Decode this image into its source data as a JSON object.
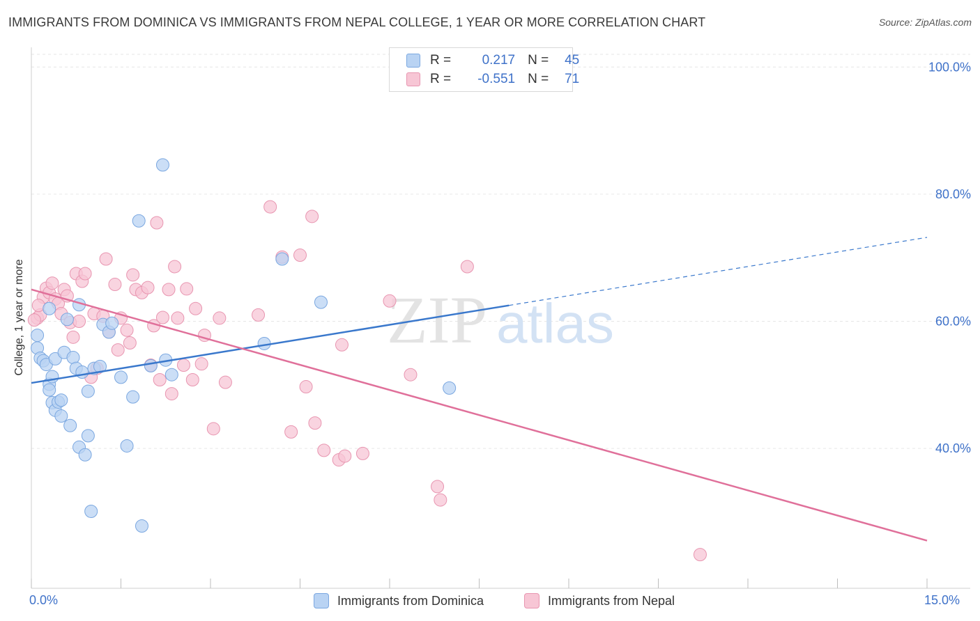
{
  "title": "IMMIGRANTS FROM DOMINICA VS IMMIGRANTS FROM NEPAL COLLEGE, 1 YEAR OR MORE CORRELATION CHART",
  "source": "Source: ZipAtlas.com",
  "watermark": {
    "zip": "ZIP",
    "atlas": "atlas"
  },
  "colors": {
    "blue_fill": "#b9d3f3",
    "blue_stroke": "#7aa7e0",
    "blue_line": "#3a78cc",
    "pink_fill": "#f7c6d5",
    "pink_stroke": "#e895b0",
    "pink_line": "#e0709a",
    "axis_text": "#3f72c9",
    "grid": "#e6e6e6"
  },
  "legend": {
    "rows": [
      {
        "r_label": "R =",
        "r_value": "0.217",
        "n_label": "N =",
        "n_value": "45"
      },
      {
        "r_label": "R =",
        "r_value": "-0.551",
        "n_label": "N =",
        "n_value": "71"
      }
    ]
  },
  "bottom_legend": {
    "dominica": "Immigrants from Dominica",
    "nepal": "Immigrants from Nepal"
  },
  "chart_data": {
    "type": "scatter",
    "xlabel": "",
    "ylabel": "College, 1 year or more",
    "x_tick_labels": {
      "min": "0.0%",
      "max": "15.0%"
    },
    "y_tick_labels": [
      "100.0%",
      "80.0%",
      "60.0%",
      "40.0%"
    ],
    "y_tick_values": [
      100,
      80,
      60,
      40
    ],
    "xlim": [
      0,
      15
    ],
    "ylim": [
      18,
      102
    ],
    "grid": true,
    "series": [
      {
        "name": "Immigrants from Dominica",
        "R": 0.217,
        "N": 45,
        "trend": {
          "x0": 0,
          "y0": 50.3,
          "x1": 8,
          "y1": 62.5,
          "dash_to_x": 15,
          "dash_to_y": 73.2
        },
        "points": [
          [
            0.1,
            57.8
          ],
          [
            0.1,
            55.8
          ],
          [
            0.15,
            54.2
          ],
          [
            0.2,
            53.8
          ],
          [
            0.25,
            53.2
          ],
          [
            0.3,
            50.1
          ],
          [
            0.3,
            49.2
          ],
          [
            0.35,
            51.3
          ],
          [
            0.35,
            47.2
          ],
          [
            0.4,
            46.0
          ],
          [
            0.4,
            54.1
          ],
          [
            0.45,
            47.3
          ],
          [
            0.5,
            47.6
          ],
          [
            0.5,
            45.1
          ],
          [
            0.55,
            55.1
          ],
          [
            0.6,
            60.3
          ],
          [
            0.65,
            43.6
          ],
          [
            0.7,
            54.3
          ],
          [
            0.75,
            52.6
          ],
          [
            0.8,
            40.2
          ],
          [
            0.8,
            62.6
          ],
          [
            0.85,
            52.0
          ],
          [
            0.9,
            39.0
          ],
          [
            0.95,
            49.0
          ],
          [
            0.95,
            42.0
          ],
          [
            1.0,
            30.1
          ],
          [
            1.05,
            52.6
          ],
          [
            1.15,
            52.9
          ],
          [
            1.2,
            59.5
          ],
          [
            1.3,
            58.3
          ],
          [
            1.35,
            59.7
          ],
          [
            1.5,
            51.2
          ],
          [
            1.6,
            40.4
          ],
          [
            1.7,
            48.1
          ],
          [
            1.8,
            75.8
          ],
          [
            1.85,
            27.8
          ],
          [
            2.0,
            53.0
          ],
          [
            2.2,
            84.6
          ],
          [
            2.25,
            53.9
          ],
          [
            2.35,
            51.6
          ],
          [
            3.9,
            56.5
          ],
          [
            4.2,
            69.8
          ],
          [
            4.85,
            63.0
          ],
          [
            7.0,
            49.5
          ],
          [
            0.3,
            62.0
          ]
        ]
      },
      {
        "name": "Immigrants from Nepal",
        "R": -0.551,
        "N": 71,
        "trend": {
          "x0": 0,
          "y0": 65.0,
          "x1": 15,
          "y1": 25.5
        },
        "points": [
          [
            0.1,
            60.5
          ],
          [
            0.15,
            61.0
          ],
          [
            0.2,
            63.8
          ],
          [
            0.25,
            65.2
          ],
          [
            0.3,
            64.5
          ],
          [
            0.35,
            66.0
          ],
          [
            0.4,
            63.5
          ],
          [
            0.45,
            62.8
          ],
          [
            0.5,
            61.2
          ],
          [
            0.55,
            65.0
          ],
          [
            0.6,
            64.0
          ],
          [
            0.65,
            59.8
          ],
          [
            0.7,
            57.5
          ],
          [
            0.75,
            67.5
          ],
          [
            0.8,
            60.0
          ],
          [
            0.85,
            66.3
          ],
          [
            0.9,
            67.5
          ],
          [
            1.0,
            51.2
          ],
          [
            1.05,
            61.2
          ],
          [
            1.1,
            52.6
          ],
          [
            1.2,
            60.8
          ],
          [
            1.25,
            69.8
          ],
          [
            1.3,
            58.3
          ],
          [
            1.4,
            65.8
          ],
          [
            1.45,
            55.5
          ],
          [
            1.5,
            60.5
          ],
          [
            1.6,
            58.6
          ],
          [
            1.65,
            56.6
          ],
          [
            1.7,
            67.3
          ],
          [
            1.75,
            65.0
          ],
          [
            1.85,
            64.5
          ],
          [
            1.95,
            65.3
          ],
          [
            2.0,
            53.1
          ],
          [
            2.05,
            59.3
          ],
          [
            2.1,
            75.5
          ],
          [
            2.15,
            50.8
          ],
          [
            2.2,
            60.6
          ],
          [
            2.3,
            65.0
          ],
          [
            2.35,
            48.6
          ],
          [
            2.4,
            68.6
          ],
          [
            2.45,
            60.5
          ],
          [
            2.55,
            53.1
          ],
          [
            2.6,
            65.1
          ],
          [
            2.7,
            50.8
          ],
          [
            2.75,
            62.0
          ],
          [
            2.85,
            53.3
          ],
          [
            2.9,
            57.8
          ],
          [
            3.05,
            43.1
          ],
          [
            3.15,
            60.5
          ],
          [
            3.25,
            50.4
          ],
          [
            3.8,
            61.0
          ],
          [
            4.0,
            78.0
          ],
          [
            4.2,
            70.1
          ],
          [
            4.35,
            42.6
          ],
          [
            4.5,
            70.4
          ],
          [
            4.6,
            49.7
          ],
          [
            4.7,
            76.5
          ],
          [
            4.75,
            44.0
          ],
          [
            4.9,
            39.7
          ],
          [
            5.15,
            38.2
          ],
          [
            5.2,
            56.3
          ],
          [
            5.25,
            38.8
          ],
          [
            5.55,
            39.2
          ],
          [
            6.0,
            63.2
          ],
          [
            6.35,
            51.6
          ],
          [
            6.8,
            34.0
          ],
          [
            6.85,
            31.9
          ],
          [
            7.3,
            68.6
          ],
          [
            11.2,
            23.3
          ],
          [
            0.05,
            60.2
          ],
          [
            0.12,
            62.5
          ]
        ]
      }
    ]
  }
}
